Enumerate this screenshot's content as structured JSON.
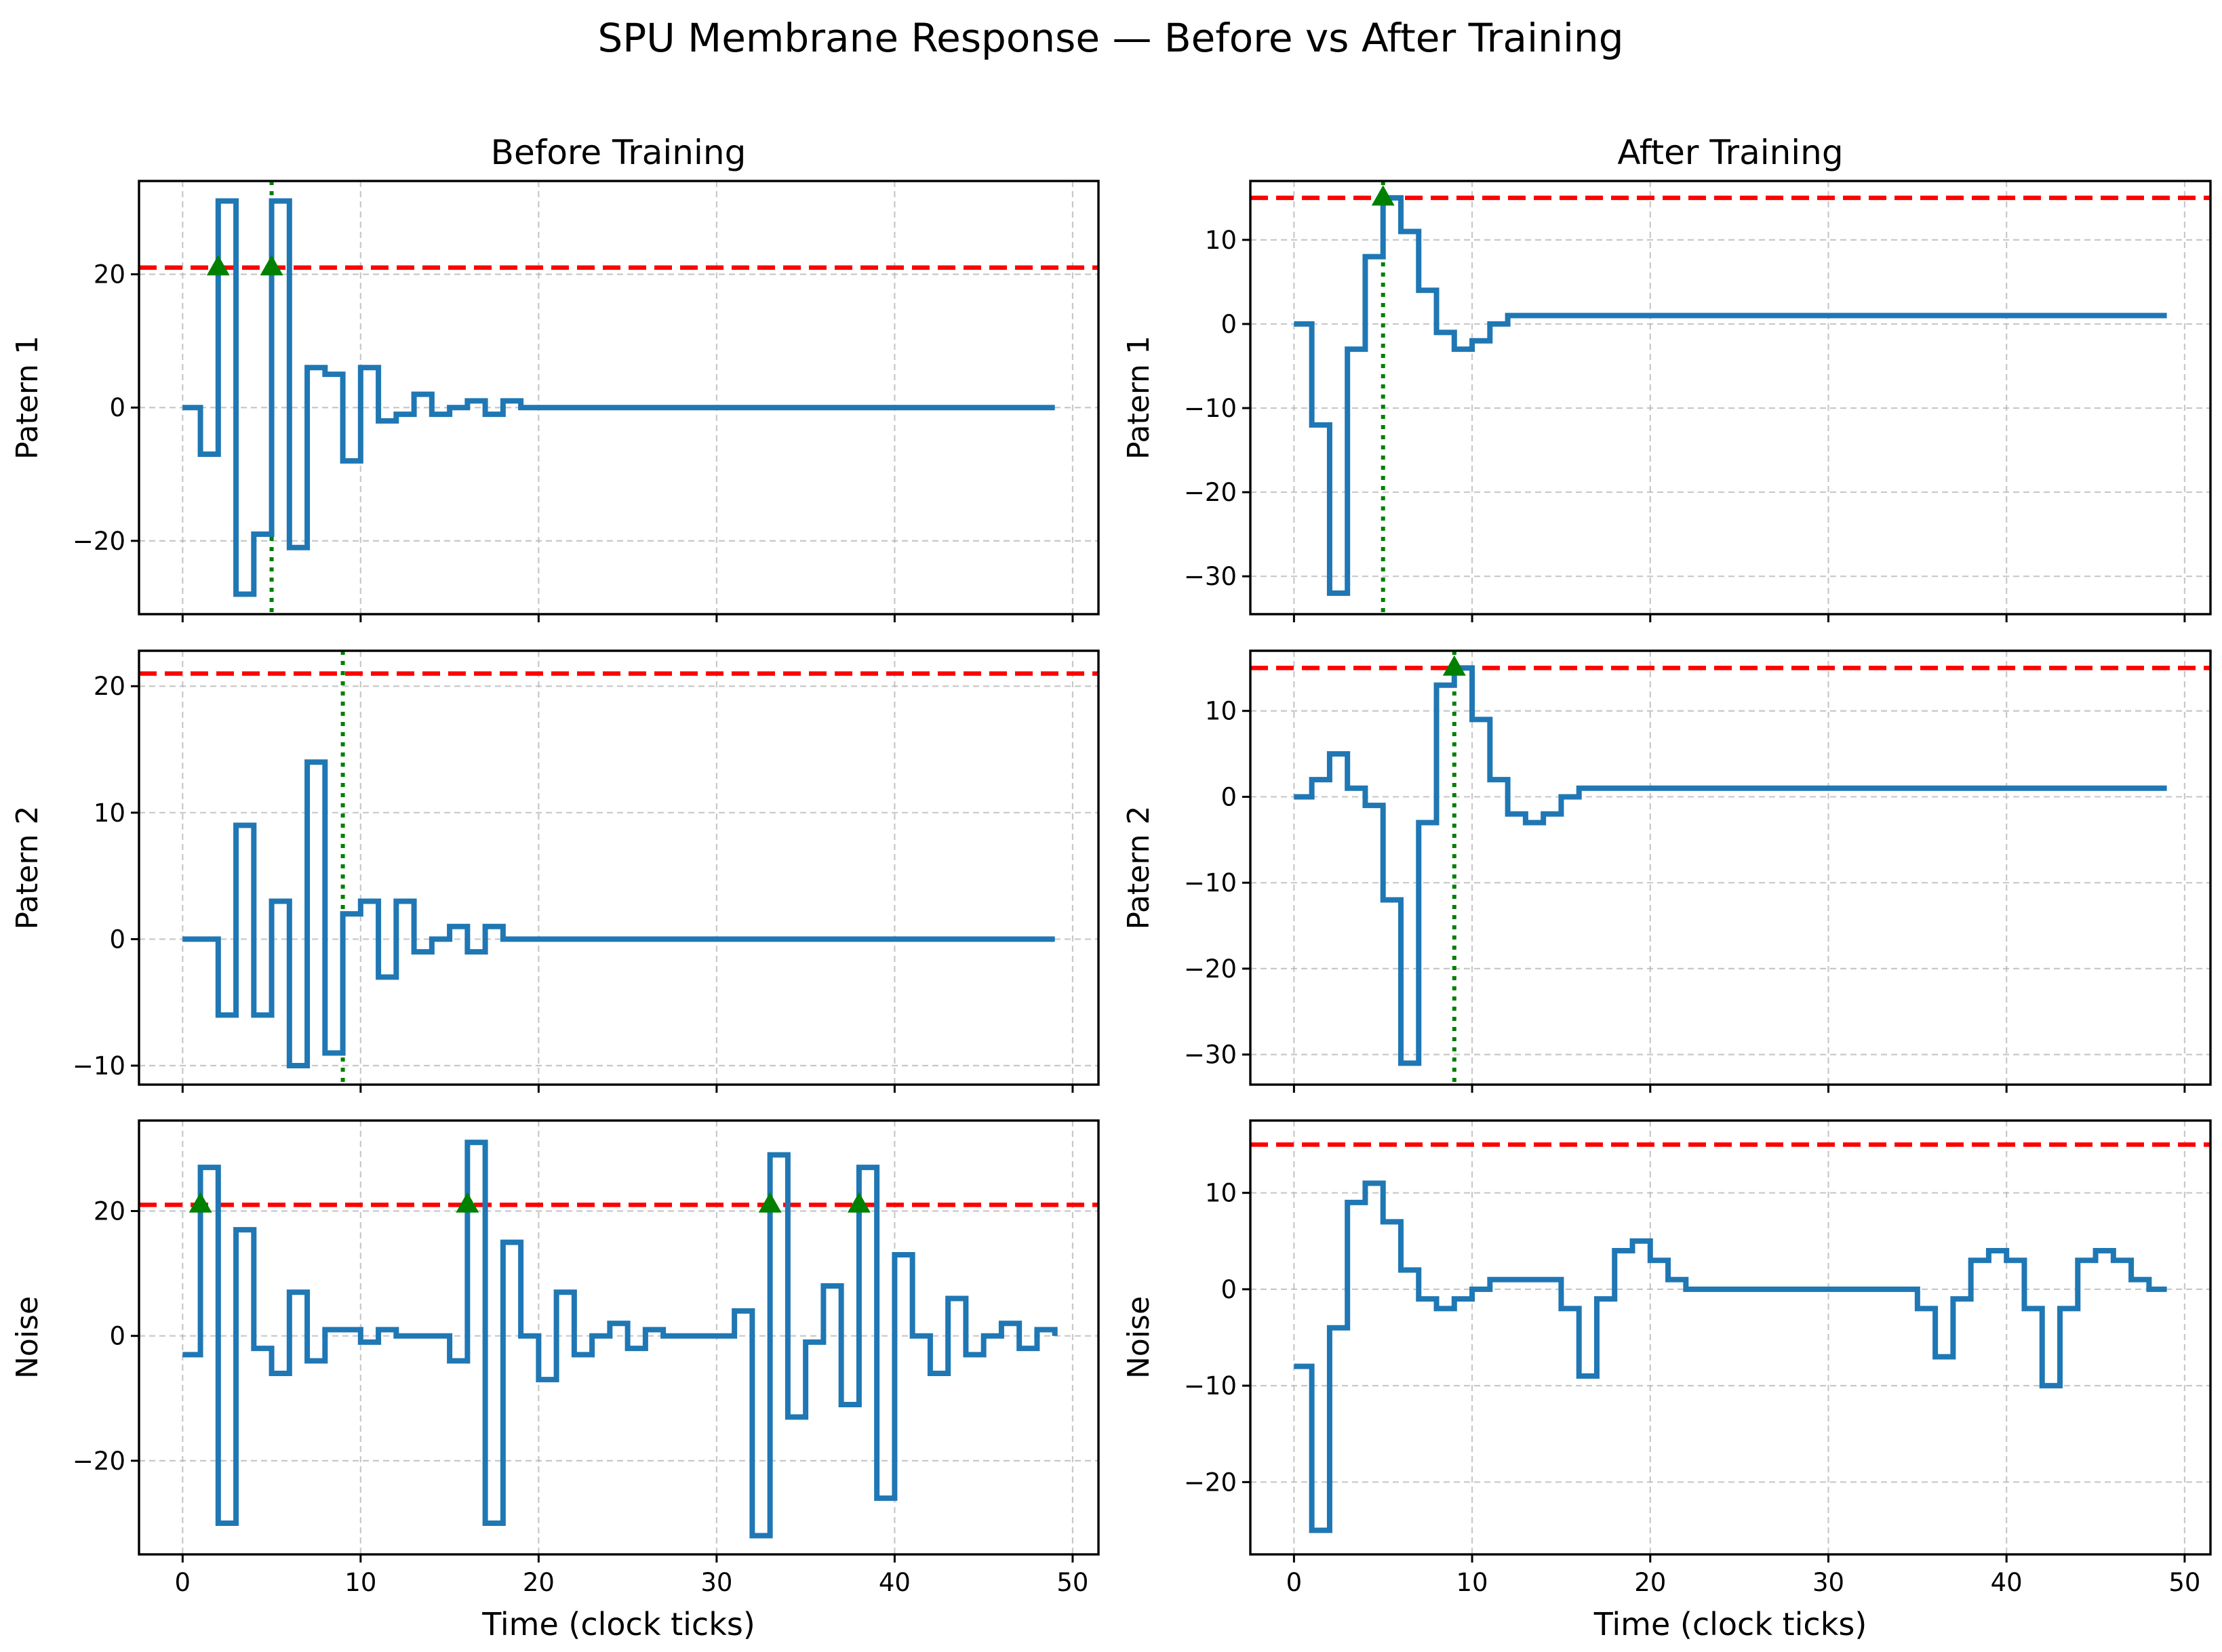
{
  "title": "SPU Membrane Response — Before vs After Training",
  "column_titles": [
    "Before Training",
    "After Training"
  ],
  "colors": {
    "trace": "#1f77b4",
    "threshold": "#ff0000",
    "spike": "#008000"
  },
  "chart_data": [
    {
      "type": "line",
      "title": "Before Training",
      "ylabel": "Patern 1",
      "xlabel": "",
      "step": "post",
      "xlim": [
        -2.45,
        51.45
      ],
      "ylim": [
        -31.0,
        34.0
      ],
      "xticks": [
        0,
        10,
        20,
        30,
        40,
        50
      ],
      "yticks": [
        -20,
        0,
        20
      ],
      "threshold": 21,
      "spikes": [
        2,
        5
      ],
      "spike_lines": [
        5
      ],
      "x_range": [
        0,
        49
      ],
      "values": [
        0,
        -7,
        21,
        -28,
        -19,
        31,
        -21,
        6,
        5,
        -8,
        6,
        -2,
        -1,
        2,
        -1,
        0,
        1,
        -1,
        1,
        0,
        0,
        0,
        0,
        0,
        0,
        0,
        0,
        0,
        0,
        0,
        0,
        0,
        0,
        0,
        0,
        0,
        0,
        0,
        0,
        0,
        0,
        0,
        0,
        0,
        0,
        0,
        0,
        0,
        0,
        0
      ],
      "display_values": [
        0,
        -7,
        31,
        -28,
        -19,
        31,
        -21,
        6,
        5,
        -8,
        6,
        -2,
        -1,
        2,
        -1,
        0,
        1,
        -1,
        1,
        0,
        0,
        0,
        0,
        0,
        0,
        0,
        0,
        0,
        0,
        0,
        0,
        0,
        0,
        0,
        0,
        0,
        0,
        0,
        0,
        0,
        0,
        0,
        0,
        0,
        0,
        0,
        0,
        0,
        0,
        0
      ]
    },
    {
      "type": "line",
      "title": "After Training",
      "ylabel": "Patern 1",
      "xlabel": "",
      "step": "post",
      "xlim": [
        -2.45,
        51.45
      ],
      "ylim": [
        -34.5,
        17.0
      ],
      "xticks": [
        0,
        10,
        20,
        30,
        40,
        50
      ],
      "yticks": [
        -30,
        -20,
        -10,
        0,
        10
      ],
      "threshold": 15,
      "spikes": [
        5
      ],
      "spike_lines": [
        5
      ],
      "x_range": [
        0,
        49
      ],
      "values": [
        0,
        -12,
        -32,
        -3,
        8,
        15,
        11,
        4,
        -1,
        -3,
        -2,
        0,
        1,
        1,
        1,
        1,
        1,
        1,
        1,
        1,
        1,
        1,
        1,
        1,
        1,
        1,
        1,
        1,
        1,
        1,
        1,
        1,
        1,
        1,
        1,
        1,
        1,
        1,
        1,
        1,
        1,
        1,
        1,
        1,
        1,
        1,
        1,
        1,
        1,
        1
      ]
    },
    {
      "type": "line",
      "title": "",
      "ylabel": "Patern 2",
      "xlabel": "",
      "step": "post",
      "xlim": [
        -2.45,
        51.45
      ],
      "ylim": [
        -11.5,
        22.8
      ],
      "xticks": [
        0,
        10,
        20,
        30,
        40,
        50
      ],
      "yticks": [
        -10,
        0,
        10,
        20
      ],
      "threshold": 21,
      "spikes": [],
      "spike_lines": [
        9
      ],
      "x_range": [
        0,
        49
      ],
      "values": [
        0,
        0,
        -6,
        9,
        -6,
        3,
        -10,
        14,
        -9,
        2,
        3,
        -3,
        3,
        -1,
        0,
        1,
        -1,
        1,
        0,
        0,
        0,
        0,
        0,
        0,
        0,
        0,
        0,
        0,
        0,
        0,
        0,
        0,
        0,
        0,
        0,
        0,
        0,
        0,
        0,
        0,
        0,
        0,
        0,
        0,
        0,
        0,
        0,
        0,
        0,
        0
      ]
    },
    {
      "type": "line",
      "title": "",
      "ylabel": "Patern 2",
      "xlabel": "",
      "step": "post",
      "xlim": [
        -2.45,
        51.45
      ],
      "ylim": [
        -33.5,
        17.0
      ],
      "xticks": [
        0,
        10,
        20,
        30,
        40,
        50
      ],
      "yticks": [
        -30,
        -20,
        -10,
        0,
        10
      ],
      "threshold": 15,
      "spikes": [
        9
      ],
      "spike_lines": [
        9
      ],
      "x_range": [
        0,
        49
      ],
      "values": [
        0,
        2,
        5,
        1,
        -1,
        -12,
        -31,
        -3,
        13,
        15,
        9,
        2,
        -2,
        -3,
        -2,
        0,
        1,
        1,
        1,
        1,
        1,
        1,
        1,
        1,
        1,
        1,
        1,
        1,
        1,
        1,
        1,
        1,
        1,
        1,
        1,
        1,
        1,
        1,
        1,
        1,
        1,
        1,
        1,
        1,
        1,
        1,
        1,
        1,
        1,
        1
      ]
    },
    {
      "type": "line",
      "title": "",
      "ylabel": "Noise",
      "xlabel": "Time (clock ticks)",
      "step": "post",
      "xlim": [
        -2.45,
        51.45
      ],
      "ylim": [
        -35.0,
        34.5
      ],
      "xticks": [
        0,
        10,
        20,
        30,
        40,
        50
      ],
      "yticks": [
        -20,
        0,
        20
      ],
      "threshold": 21,
      "spikes": [
        1,
        16,
        33,
        38
      ],
      "spike_lines": [],
      "x_range": [
        0,
        49
      ],
      "values": [
        -3,
        27,
        -30,
        17,
        -2,
        -6,
        7,
        -4,
        1,
        1,
        -1,
        1,
        0,
        0,
        0,
        -4,
        31,
        -30,
        15,
        0,
        -7,
        7,
        -3,
        0,
        2,
        -2,
        1,
        0,
        0,
        0,
        0,
        4,
        -32,
        29,
        -13,
        -1,
        8,
        -11,
        27,
        -26,
        13,
        0,
        -6,
        6,
        -3,
        0,
        2,
        -2,
        1,
        0
      ],
      "display_values": [
        -3,
        27,
        -30,
        17,
        -2,
        -6,
        7,
        -4,
        1,
        1,
        -1,
        1,
        0,
        0,
        0,
        -4,
        31,
        -30,
        15,
        0,
        -7,
        7,
        -3,
        0,
        2,
        -2,
        1,
        0,
        0,
        0,
        0,
        4,
        -32,
        29,
        -13,
        -1,
        8,
        -11,
        27,
        -26,
        13,
        0,
        -6,
        6,
        -3,
        0,
        2,
        -2,
        1,
        0
      ]
    },
    {
      "type": "line",
      "title": "",
      "ylabel": "Noise",
      "xlabel": "Time (clock ticks)",
      "step": "post",
      "xlim": [
        -2.45,
        51.45
      ],
      "ylim": [
        -27.5,
        17.5
      ],
      "xticks": [
        0,
        10,
        20,
        30,
        40,
        50
      ],
      "yticks": [
        -20,
        -10,
        0,
        10
      ],
      "threshold": 15,
      "spikes": [],
      "spike_lines": [],
      "x_range": [
        0,
        49
      ],
      "values": [
        -8,
        -25,
        -4,
        9,
        11,
        7,
        2,
        -1,
        -2,
        -1,
        0,
        1,
        1,
        1,
        1,
        -2,
        -9,
        -1,
        4,
        5,
        3,
        1,
        0,
        0,
        0,
        0,
        0,
        0,
        0,
        0,
        0,
        0,
        0,
        0,
        0,
        -2,
        -7,
        -1,
        3,
        4,
        3,
        -2,
        -10,
        -2,
        3,
        4,
        3,
        1,
        0,
        0
      ]
    }
  ]
}
